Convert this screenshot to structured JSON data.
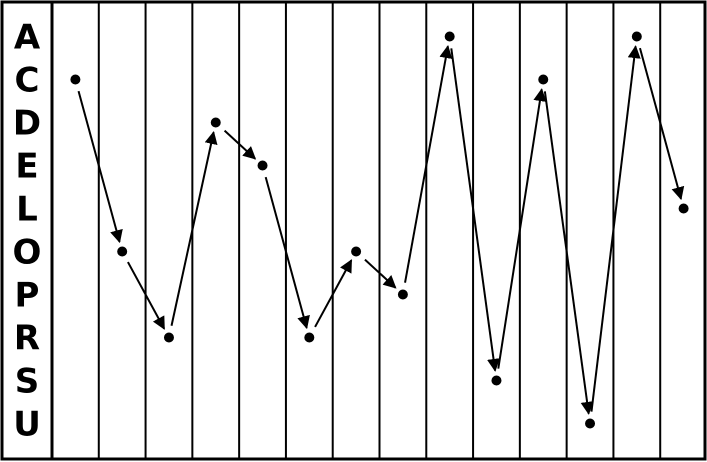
{
  "row_labels": [
    "A",
    "C",
    "D",
    "E",
    "L",
    "O",
    "P",
    "R",
    "S",
    "U"
  ],
  "column_count": 14,
  "sequence": [
    "C",
    "O",
    "R",
    "D",
    "E",
    "R",
    "O",
    "P",
    "A",
    "S",
    "C",
    "U",
    "A",
    "L"
  ],
  "colors": {
    "line": "#000000",
    "background": "#ffffff"
  }
}
